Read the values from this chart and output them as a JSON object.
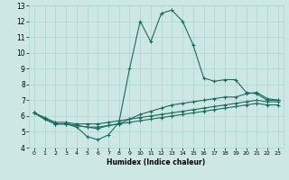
{
  "xlabel": "Humidex (Indice chaleur)",
  "xlim": [
    -0.5,
    23.5
  ],
  "ylim": [
    4,
    13
  ],
  "xticks": [
    0,
    1,
    2,
    3,
    4,
    5,
    6,
    7,
    8,
    9,
    10,
    11,
    12,
    13,
    14,
    15,
    16,
    17,
    18,
    19,
    20,
    21,
    22,
    23
  ],
  "yticks": [
    4,
    5,
    6,
    7,
    8,
    9,
    10,
    11,
    12,
    13
  ],
  "bg_color": "#cde8e4",
  "grid_color": "#b0d4ce",
  "line_color": "#1a6b5e",
  "lines": [
    {
      "x": [
        0,
        1,
        2,
        3,
        4,
        5,
        6,
        7,
        8,
        9,
        10,
        11,
        12,
        13,
        14,
        15,
        16,
        17,
        18,
        19,
        20,
        21,
        22,
        23
      ],
      "y": [
        6.2,
        5.8,
        5.5,
        5.5,
        5.3,
        4.7,
        4.5,
        4.8,
        5.6,
        9.0,
        12.0,
        10.7,
        12.5,
        12.7,
        12.0,
        10.5,
        8.4,
        8.2,
        8.3,
        8.3,
        7.5,
        7.4,
        7.0,
        7.0
      ]
    },
    {
      "x": [
        0,
        1,
        2,
        3,
        4,
        5,
        6,
        7,
        8,
        9,
        10,
        11,
        12,
        13,
        14,
        15,
        16,
        17,
        18,
        19,
        20,
        21,
        22,
        23
      ],
      "y": [
        6.2,
        5.8,
        5.5,
        5.5,
        5.4,
        5.3,
        5.2,
        5.4,
        5.5,
        5.8,
        6.1,
        6.3,
        6.5,
        6.7,
        6.8,
        6.9,
        7.0,
        7.1,
        7.2,
        7.2,
        7.4,
        7.5,
        7.1,
        7.0
      ]
    },
    {
      "x": [
        0,
        1,
        2,
        3,
        4,
        5,
        6,
        7,
        8,
        9,
        10,
        11,
        12,
        13,
        14,
        15,
        16,
        17,
        18,
        19,
        20,
        21,
        22,
        23
      ],
      "y": [
        6.2,
        5.9,
        5.6,
        5.6,
        5.5,
        5.5,
        5.5,
        5.6,
        5.7,
        5.8,
        5.9,
        6.0,
        6.1,
        6.2,
        6.3,
        6.4,
        6.5,
        6.6,
        6.7,
        6.8,
        6.9,
        7.0,
        6.9,
        6.9
      ]
    },
    {
      "x": [
        0,
        1,
        2,
        3,
        4,
        5,
        6,
        7,
        8,
        9,
        10,
        11,
        12,
        13,
        14,
        15,
        16,
        17,
        18,
        19,
        20,
        21,
        22,
        23
      ],
      "y": [
        6.2,
        5.8,
        5.5,
        5.5,
        5.4,
        5.3,
        5.3,
        5.4,
        5.5,
        5.6,
        5.7,
        5.8,
        5.9,
        6.0,
        6.1,
        6.2,
        6.3,
        6.4,
        6.5,
        6.6,
        6.7,
        6.8,
        6.7,
        6.7
      ]
    }
  ]
}
